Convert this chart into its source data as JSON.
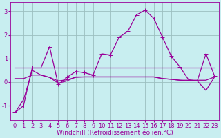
{
  "xlabel": "Windchill (Refroidissement éolien,°C)",
  "background_color": "#c8eef0",
  "grid_color": "#9bbfbf",
  "line_color": "#990099",
  "x_ticks": [
    0,
    1,
    2,
    3,
    4,
    5,
    6,
    7,
    8,
    9,
    10,
    11,
    12,
    13,
    14,
    15,
    16,
    17,
    18,
    19,
    20,
    21,
    22,
    23
  ],
  "ylim": [
    -1.6,
    3.4
  ],
  "yticks": [
    -1,
    0,
    1,
    2,
    3
  ],
  "series": [
    [
      -1.3,
      -1.0,
      0.6,
      0.6,
      1.5,
      -0.1,
      0.2,
      0.45,
      0.4,
      0.3,
      1.2,
      1.15,
      1.9,
      2.15,
      2.85,
      3.05,
      2.7,
      1.9,
      1.1,
      0.65,
      0.1,
      0.05,
      1.2,
      0.25
    ],
    [
      0.6,
      0.6,
      0.6,
      0.6,
      0.6,
      0.6,
      0.6,
      0.6,
      0.6,
      0.6,
      0.6,
      0.6,
      0.6,
      0.6,
      0.6,
      0.6,
      0.6,
      0.6,
      0.6,
      0.6,
      0.6,
      0.6,
      0.6,
      0.6
    ],
    [
      0.15,
      0.15,
      0.3,
      0.3,
      0.2,
      -0.05,
      0.05,
      0.22,
      0.22,
      0.22,
      0.22,
      0.22,
      0.22,
      0.22,
      0.22,
      0.22,
      0.22,
      0.15,
      0.12,
      0.08,
      0.08,
      0.08,
      0.08,
      0.22
    ],
    [
      -1.3,
      -0.75,
      0.5,
      0.3,
      0.2,
      0.05,
      0.1,
      0.2,
      0.22,
      0.22,
      0.22,
      0.22,
      0.22,
      0.22,
      0.22,
      0.22,
      0.22,
      0.15,
      0.12,
      0.08,
      0.05,
      0.05,
      -0.35,
      0.22
    ]
  ],
  "marker": "+",
  "marker_size": 4,
  "linewidth": 0.9,
  "xlabel_fontsize": 6.5,
  "tick_fontsize": 6.0
}
